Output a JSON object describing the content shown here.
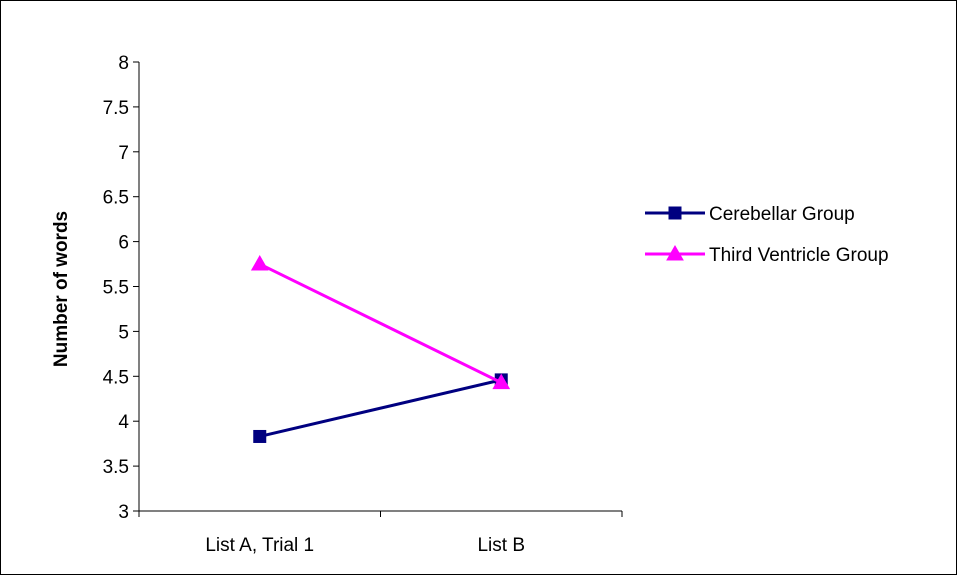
{
  "chart_data": {
    "type": "line",
    "title": "",
    "xlabel": "",
    "ylabel": "Number of words",
    "categories": [
      "List A, Trial 1",
      "List B"
    ],
    "ylim": [
      3,
      8
    ],
    "yticks": [
      "3",
      "3.5",
      "4",
      "4.5",
      "5",
      "5.5",
      "6",
      "6.5",
      "7",
      "7.5",
      "8"
    ],
    "grid": false,
    "legend_position": "right",
    "series": [
      {
        "name": "Cerebellar Group",
        "values": [
          3.83,
          4.46
        ],
        "color": "#000080",
        "marker": "square"
      },
      {
        "name": "Third Ventricle Group",
        "values": [
          5.75,
          4.43
        ],
        "color": "#FF00FF",
        "marker": "triangle"
      }
    ]
  }
}
